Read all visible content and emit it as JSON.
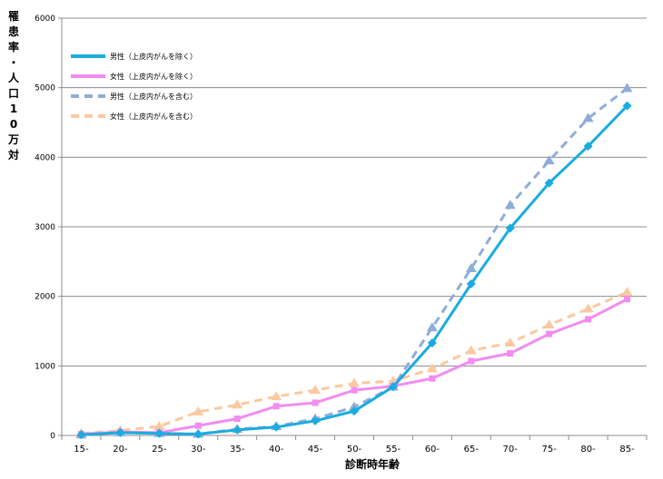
{
  "chart_data": {
    "type": "line",
    "title": "",
    "xlabel": "診断時年齢",
    "ylabel": "罹患率・人口10万対",
    "categories": [
      "15-",
      "20-",
      "25-",
      "30-",
      "35-",
      "40-",
      "45-",
      "50-",
      "55-",
      "60-",
      "65-",
      "70-",
      "75-",
      "80-",
      "85-"
    ],
    "ylim": [
      0,
      6000
    ],
    "yticks": [
      0,
      1000,
      2000,
      3000,
      4000,
      5000,
      6000
    ],
    "grid": true,
    "legend_position": "top-left",
    "series": [
      {
        "name": "男性（上皮内がんを除く）",
        "color": "#1aace0",
        "dash": false,
        "marker": "diamond",
        "values": [
          10,
          40,
          30,
          20,
          80,
          120,
          210,
          350,
          700,
          1330,
          2180,
          2980,
          3630,
          4160,
          4740
        ]
      },
      {
        "name": "女性（上皮内がんを除く）",
        "color": "#f28cf0",
        "dash": false,
        "marker": "square",
        "values": [
          20,
          50,
          40,
          140,
          240,
          420,
          470,
          650,
          710,
          820,
          1070,
          1180,
          1460,
          1670,
          1960
        ]
      },
      {
        "name": "男性（上皮内がんを含む）",
        "color": "#8fadd9",
        "dash": true,
        "marker": "triangle",
        "values": [
          10,
          40,
          30,
          20,
          90,
          130,
          240,
          410,
          700,
          1550,
          2400,
          3310,
          3950,
          4560,
          4990
        ]
      },
      {
        "name": "女性（上皮内がんを含む）",
        "color": "#fbc9a0",
        "dash": true,
        "marker": "triangle",
        "values": [
          30,
          70,
          130,
          340,
          440,
          560,
          650,
          750,
          780,
          960,
          1220,
          1330,
          1590,
          1820,
          2060
        ]
      }
    ]
  }
}
